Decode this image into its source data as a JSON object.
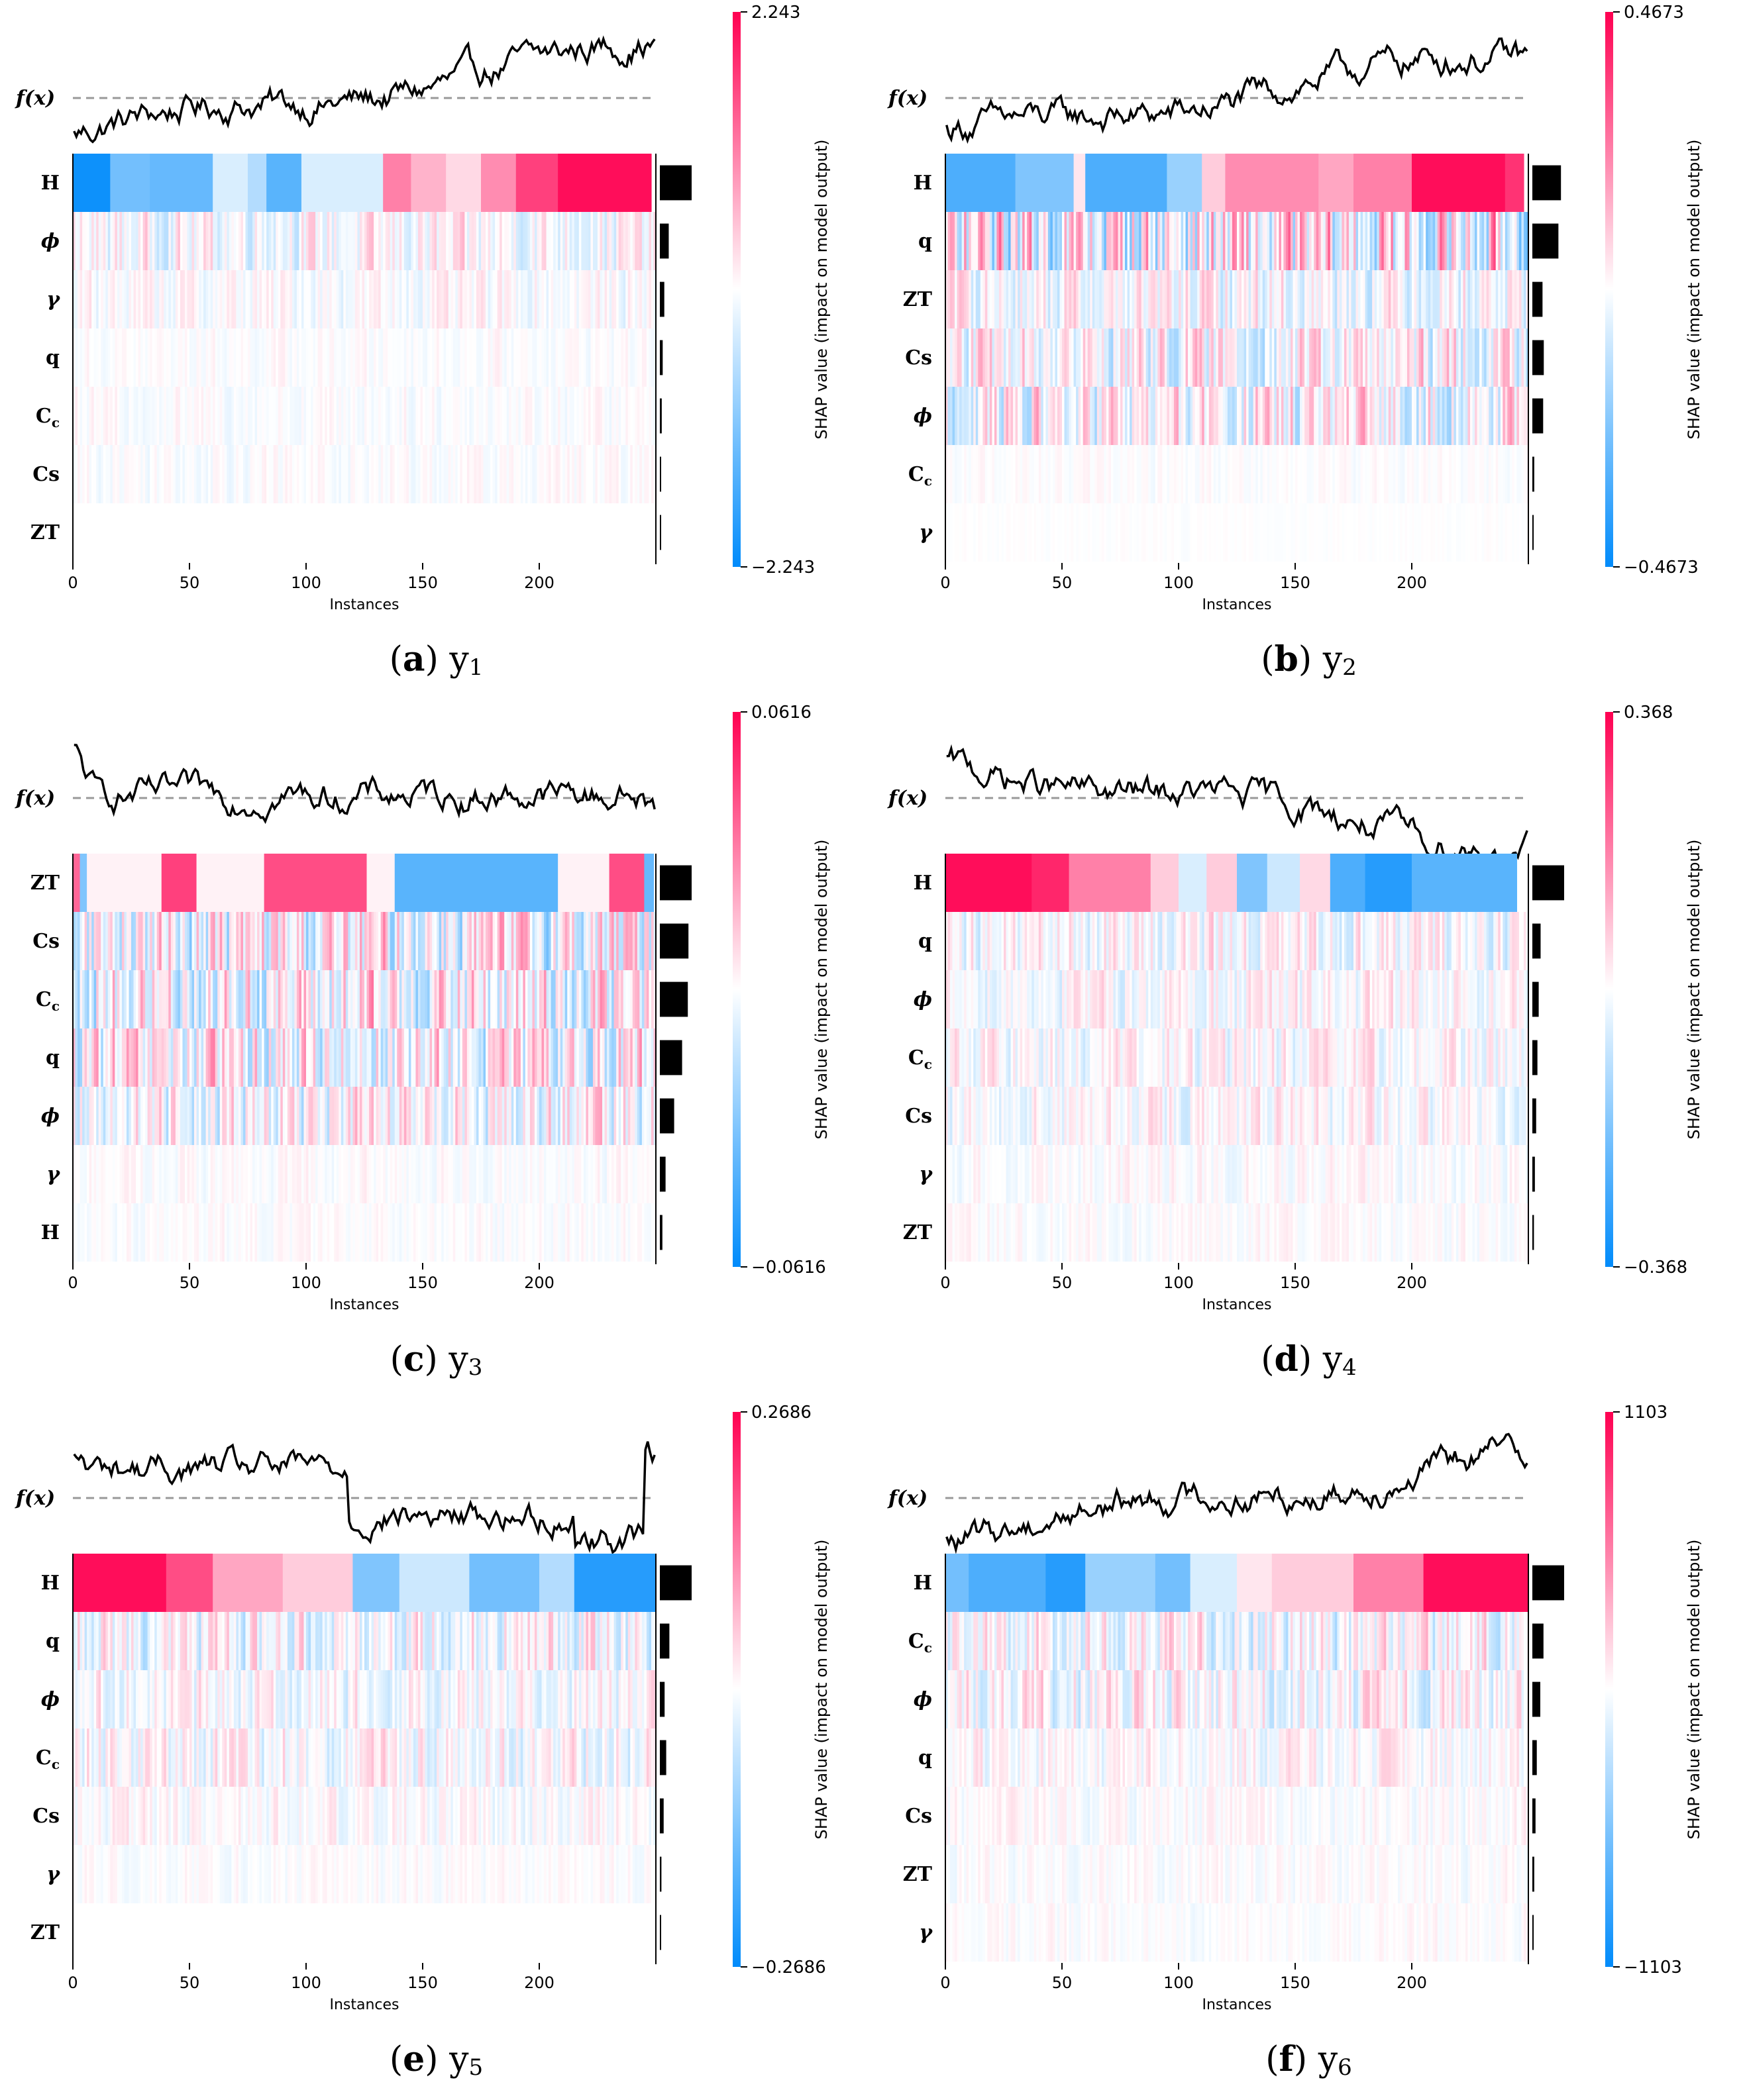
{
  "panels": [
    {
      "letter": "a",
      "target": "y",
      "subscript": "1",
      "colorbar_max": "2.243",
      "colorbar_min": "−2.243",
      "features": [
        "H",
        "ϕ",
        "γ",
        "q",
        "Cc",
        "Cs",
        "ZT"
      ],
      "importance": [
        1.0,
        0.28,
        0.14,
        0.09,
        0.06,
        0.04,
        0.02
      ],
      "row_strength": [
        1.0,
        0.35,
        0.2,
        0.1,
        0.12,
        0.12,
        0.0
      ],
      "fx_start": -0.7,
      "fx_end": 0.95,
      "fx_shape": "trend",
      "top_row": [
        [
          0,
          16,
          -0.95
        ],
        [
          16,
          33,
          -0.55
        ],
        [
          33,
          60,
          -0.6
        ],
        [
          60,
          75,
          -0.15
        ],
        [
          75,
          83,
          -0.3
        ],
        [
          83,
          98,
          -0.65
        ],
        [
          98,
          133,
          -0.15
        ],
        [
          133,
          145,
          0.5
        ],
        [
          145,
          160,
          0.3
        ],
        [
          160,
          175,
          0.15
        ],
        [
          175,
          190,
          0.45
        ],
        [
          190,
          208,
          0.75
        ],
        [
          208,
          248,
          0.95
        ]
      ]
    },
    {
      "letter": "b",
      "target": "y",
      "subscript": "2",
      "colorbar_max": "0.4673",
      "colorbar_min": "−0.4673",
      "features": [
        "H",
        "q",
        "ZT",
        "Cs",
        "ϕ",
        "Cc",
        "γ"
      ],
      "importance": [
        0.9,
        0.82,
        0.32,
        0.36,
        0.34,
        0.06,
        0.02
      ],
      "row_strength": [
        0.95,
        0.9,
        0.4,
        0.5,
        0.55,
        0.08,
        0.03
      ],
      "fx_start": -0.75,
      "fx_end": 0.85,
      "fx_shape": "trend",
      "top_row": [
        [
          0,
          30,
          -0.7
        ],
        [
          30,
          55,
          -0.5
        ],
        [
          55,
          60,
          0.1
        ],
        [
          60,
          95,
          -0.7
        ],
        [
          95,
          110,
          -0.4
        ],
        [
          110,
          120,
          0.2
        ],
        [
          120,
          160,
          0.45
        ],
        [
          160,
          175,
          0.35
        ],
        [
          175,
          200,
          0.5
        ],
        [
          200,
          240,
          0.95
        ],
        [
          240,
          248,
          0.8
        ]
      ]
    },
    {
      "letter": "c",
      "target": "y",
      "subscript": "3",
      "colorbar_max": "0.0616",
      "colorbar_min": "−0.0616",
      "features": [
        "ZT",
        "Cs",
        "Cc",
        "q",
        "ϕ",
        "γ",
        "H"
      ],
      "importance": [
        1.0,
        0.9,
        0.88,
        0.7,
        0.45,
        0.18,
        0.08
      ],
      "row_strength": [
        0.9,
        0.7,
        0.7,
        0.65,
        0.5,
        0.12,
        0.1
      ],
      "fx_start": 0.9,
      "fx_end": -0.3,
      "fx_shape": "flat",
      "top_row": [
        [
          0,
          3,
          0.6
        ],
        [
          3,
          6,
          -0.5
        ],
        [
          6,
          38,
          0.05
        ],
        [
          38,
          53,
          0.75
        ],
        [
          53,
          82,
          0.05
        ],
        [
          82,
          126,
          0.7
        ],
        [
          126,
          138,
          0.05
        ],
        [
          138,
          208,
          -0.65
        ],
        [
          208,
          230,
          0.05
        ],
        [
          230,
          245,
          0.7
        ],
        [
          245,
          249,
          -0.6
        ]
      ]
    },
    {
      "letter": "d",
      "target": "y",
      "subscript": "4",
      "colorbar_max": "0.368",
      "colorbar_min": "−0.368",
      "features": [
        "H",
        "q",
        "ϕ",
        "Cc",
        "Cs",
        "γ",
        "ZT"
      ],
      "importance": [
        1.0,
        0.26,
        0.2,
        0.16,
        0.12,
        0.08,
        0.05
      ],
      "row_strength": [
        0.95,
        0.35,
        0.3,
        0.3,
        0.28,
        0.15,
        0.12
      ],
      "fx_start": 0.65,
      "fx_end": -0.9,
      "fx_shape": "trend",
      "top_row": [
        [
          0,
          37,
          0.95
        ],
        [
          37,
          53,
          0.85
        ],
        [
          53,
          88,
          0.5
        ],
        [
          88,
          100,
          0.2
        ],
        [
          100,
          112,
          -0.15
        ],
        [
          112,
          125,
          0.2
        ],
        [
          125,
          138,
          -0.5
        ],
        [
          138,
          152,
          -0.2
        ],
        [
          152,
          165,
          0.15
        ],
        [
          165,
          180,
          -0.7
        ],
        [
          180,
          200,
          -0.85
        ],
        [
          200,
          245,
          -0.65
        ]
      ]
    },
    {
      "letter": "e",
      "target": "y",
      "subscript": "5",
      "colorbar_max": "0.2686",
      "colorbar_min": "−0.2686",
      "features": [
        "H",
        "q",
        "ϕ",
        "Cc",
        "Cs",
        "γ",
        "ZT"
      ],
      "importance": [
        1.0,
        0.3,
        0.15,
        0.2,
        0.12,
        0.05,
        0.02
      ],
      "row_strength": [
        0.95,
        0.45,
        0.3,
        0.35,
        0.2,
        0.1,
        0.0
      ],
      "fx_start": 0.7,
      "fx_end": 0.9,
      "fx_shape": "ue",
      "top_row": [
        [
          0,
          40,
          0.95
        ],
        [
          40,
          60,
          0.7
        ],
        [
          60,
          90,
          0.35
        ],
        [
          90,
          120,
          0.2
        ],
        [
          120,
          140,
          -0.5
        ],
        [
          140,
          170,
          -0.2
        ],
        [
          170,
          200,
          -0.55
        ],
        [
          200,
          215,
          -0.3
        ],
        [
          215,
          250,
          -0.85
        ]
      ]
    },
    {
      "letter": "f",
      "target": "y",
      "subscript": "6",
      "colorbar_max": "1103",
      "colorbar_min": "−1103",
      "features": [
        "H",
        "Cc",
        "ϕ",
        "q",
        "Cs",
        "ZT",
        "γ"
      ],
      "importance": [
        1.0,
        0.35,
        0.25,
        0.14,
        0.1,
        0.06,
        0.04
      ],
      "row_strength": [
        0.95,
        0.45,
        0.4,
        0.25,
        0.15,
        0.12,
        0.1
      ],
      "fx_start": -0.7,
      "fx_end": 0.8,
      "fx_shape": "trend",
      "top_row": [
        [
          0,
          10,
          -0.55
        ],
        [
          10,
          43,
          -0.7
        ],
        [
          43,
          60,
          -0.85
        ],
        [
          60,
          90,
          -0.4
        ],
        [
          90,
          105,
          -0.55
        ],
        [
          105,
          125,
          -0.15
        ],
        [
          125,
          140,
          0.1
        ],
        [
          140,
          175,
          0.2
        ],
        [
          175,
          205,
          0.5
        ],
        [
          205,
          250,
          0.95
        ]
      ]
    }
  ],
  "shared": {
    "fx_label": "f(x)",
    "xlabel": "Instances",
    "colorbar_label": "SHAP value (impact on model output)",
    "xticks": [
      "0",
      "50",
      "100",
      "150",
      "200"
    ],
    "n_instances": 250,
    "colors": {
      "positive": "#ff0051",
      "negative": "#008bfb",
      "baseline": "#999999"
    }
  },
  "chart_data": {
    "type": "heatmap",
    "xlabel": "Instances",
    "x_range": [
      0,
      250
    ],
    "colorbar_label": "SHAP value (impact on model output)",
    "panels": [
      {
        "label": "(a) y1",
        "features": [
          "H",
          "ϕ",
          "γ",
          "q",
          "Cc",
          "Cs",
          "ZT"
        ],
        "clim": [
          -2.243,
          2.243
        ]
      },
      {
        "label": "(b) y2",
        "features": [
          "H",
          "q",
          "ZT",
          "Cs",
          "ϕ",
          "Cc",
          "γ"
        ],
        "clim": [
          -0.4673,
          0.4673
        ]
      },
      {
        "label": "(c) y3",
        "features": [
          "ZT",
          "Cs",
          "Cc",
          "q",
          "ϕ",
          "γ",
          "H"
        ],
        "clim": [
          -0.0616,
          0.0616
        ]
      },
      {
        "label": "(d) y4",
        "features": [
          "H",
          "q",
          "ϕ",
          "Cc",
          "Cs",
          "γ",
          "ZT"
        ],
        "clim": [
          -0.368,
          0.368
        ]
      },
      {
        "label": "(e) y5",
        "features": [
          "H",
          "q",
          "ϕ",
          "Cc",
          "Cs",
          "γ",
          "ZT"
        ],
        "clim": [
          -0.2686,
          0.2686
        ]
      },
      {
        "label": "(f) y6",
        "features": [
          "H",
          "Cc",
          "ϕ",
          "q",
          "Cs",
          "ZT",
          "γ"
        ],
        "clim": [
          -1103,
          1103
        ]
      }
    ]
  }
}
